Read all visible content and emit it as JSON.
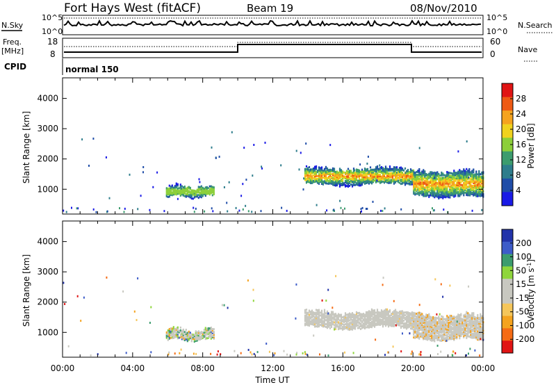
{
  "header": {
    "station": "Fort Hays West (fitACF)",
    "beam": "Beam 19",
    "date": "08/Nov/2010"
  },
  "top_panel": {
    "left_label": "N.Sky",
    "right_label": "N.Search",
    "upper_tick": "10^5",
    "lower_tick": "10^0"
  },
  "freq_panel": {
    "left_label_line1": "Freq.",
    "left_label_line2": "[MHz]",
    "left_ticks": [
      "18",
      "8"
    ],
    "right_label": "Nave",
    "right_ticks": [
      "60",
      "0"
    ]
  },
  "cpid": {
    "label": "CPID",
    "mode": "normal 150"
  },
  "colors": {
    "power": [
      "#1a1ae6",
      "#1f4da8",
      "#2e7d8c",
      "#3c9c6e",
      "#8ccf3a",
      "#f0d21e",
      "#f5a31e",
      "#ee5a14",
      "#e01414"
    ],
    "velocity": [
      "#e01414",
      "#f56b14",
      "#f5a31e",
      "#f5c65a",
      "#c8c8c0",
      "#c8c8c0",
      "#8fd63c",
      "#3c9c6e",
      "#3d5cc9",
      "#2233aa"
    ]
  },
  "chart_data": [
    {
      "type": "heatmap",
      "title": "Power",
      "ylabel": "Slant Range [km]",
      "xlabel": "Time UT",
      "x_ticks": [
        "00:00",
        "04:00",
        "08:00",
        "12:00",
        "16:00",
        "20:00",
        "00:00"
      ],
      "y_ticks": [
        1000,
        2000,
        3000,
        4000
      ],
      "ylim": [
        180,
        4680
      ],
      "xlim_hours": [
        0,
        24
      ],
      "colorbar": {
        "label": "Power [dB]",
        "ticks": [
          "4",
          "8",
          "12",
          "16",
          "20",
          "24",
          "28"
        ],
        "range": [
          0,
          32
        ]
      },
      "regions": [
        {
          "t_start": 5.9,
          "t_end": 8.6,
          "r_low": 700,
          "r_high": 1100,
          "value": "moderate (8-20 dB)"
        },
        {
          "t_start": 13.8,
          "t_end": 20.0,
          "r_low": 1100,
          "r_high": 1700,
          "value": "strong near 1400 km (up to 24 dB)"
        },
        {
          "t_start": 20.0,
          "t_end": 24.0,
          "r_low": 700,
          "r_high": 1600,
          "value": "strong near 900-1300 km (up to 24 dB)"
        }
      ]
    },
    {
      "type": "heatmap",
      "title": "Velocity",
      "ylabel": "Slant Range [km]",
      "xlabel": "Time UT",
      "x_ticks": [
        "00:00",
        "04:00",
        "08:00",
        "12:00",
        "16:00",
        "20:00",
        "00:00"
      ],
      "y_ticks": [
        1000,
        2000,
        3000,
        4000
      ],
      "ylim": [
        180,
        4680
      ],
      "xlim_hours": [
        0,
        24
      ],
      "colorbar": {
        "label": "Velocity [m s^-1]",
        "ticks": [
          "200",
          "100",
          "50",
          "15",
          "-15",
          "-50",
          "-100",
          "-200"
        ],
        "range": [
          -250,
          250
        ]
      },
      "regions": [
        {
          "t_start": 5.9,
          "t_end": 8.6,
          "r_low": 700,
          "r_high": 1100,
          "value": "near zero with positive patches"
        },
        {
          "t_start": 13.8,
          "t_end": 20.0,
          "r_low": 1100,
          "r_high": 1700,
          "value": "near zero (ground scatter)"
        },
        {
          "t_start": 20.0,
          "t_end": 24.0,
          "r_low": 700,
          "r_high": 1600,
          "value": "near zero, some -50 patches"
        }
      ]
    }
  ],
  "ylabel_slant": "Slant Range [km]",
  "ylabel_unit_power": "Power [dB]",
  "ylabel_unit_vel_main": "Velocity [m s",
  "ylabel_unit_vel_sup": "-1",
  "ylabel_unit_vel_end": "]",
  "xlabel": "Time UT"
}
